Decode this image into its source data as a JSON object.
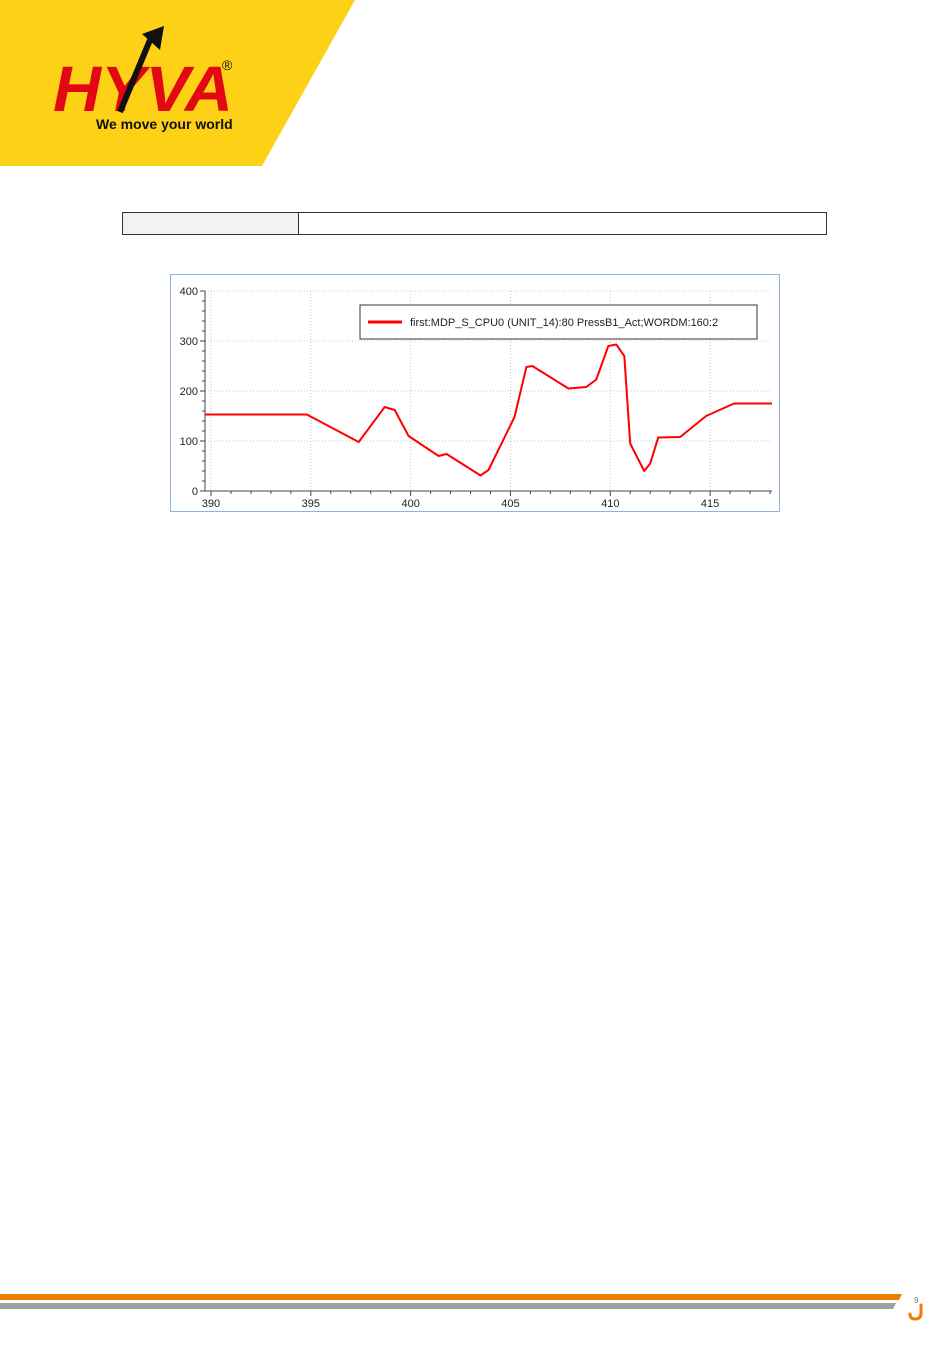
{
  "brand": {
    "logo_text": "HYVA",
    "registered_mark": "®",
    "tagline": "We move your world",
    "colors": {
      "yellow": "#fcd116",
      "red": "#e30613",
      "black": "#111111",
      "orange": "#f07d00",
      "gray": "#a0a0a0"
    }
  },
  "info_table": {
    "label": "",
    "value": ""
  },
  "chart_data": {
    "type": "line",
    "x_ticks": [
      390,
      395,
      400,
      405,
      410,
      415
    ],
    "y_ticks": [
      0,
      100,
      200,
      300,
      400
    ],
    "xlim": [
      389.7,
      418.1
    ],
    "ylim": [
      0,
      400
    ],
    "grid": true,
    "legend_position": "top-right",
    "series": [
      {
        "name": "first:MDP_S_CPU0 (UNIT_14):80 PressB1_Act;WORDM:160:2",
        "color": "#ff0000",
        "x": [
          389.7,
          392.0,
          394.8,
          397.4,
          398.7,
          399.2,
          399.9,
          401.4,
          401.8,
          403.5,
          403.9,
          405.2,
          405.8,
          406.1,
          407.9,
          408.8,
          409.3,
          409.9,
          410.3,
          410.7,
          411.0,
          411.7,
          412.0,
          412.4,
          413.5,
          414.8,
          416.2,
          418.1
        ],
        "y": [
          153,
          153,
          153,
          98,
          168,
          162,
          110,
          70,
          74,
          31,
          42,
          148,
          248,
          250,
          205,
          208,
          223,
          290,
          293,
          270,
          95,
          40,
          55,
          107,
          108,
          150,
          175,
          175
        ]
      }
    ]
  },
  "footer": {
    "page_number": "9"
  }
}
